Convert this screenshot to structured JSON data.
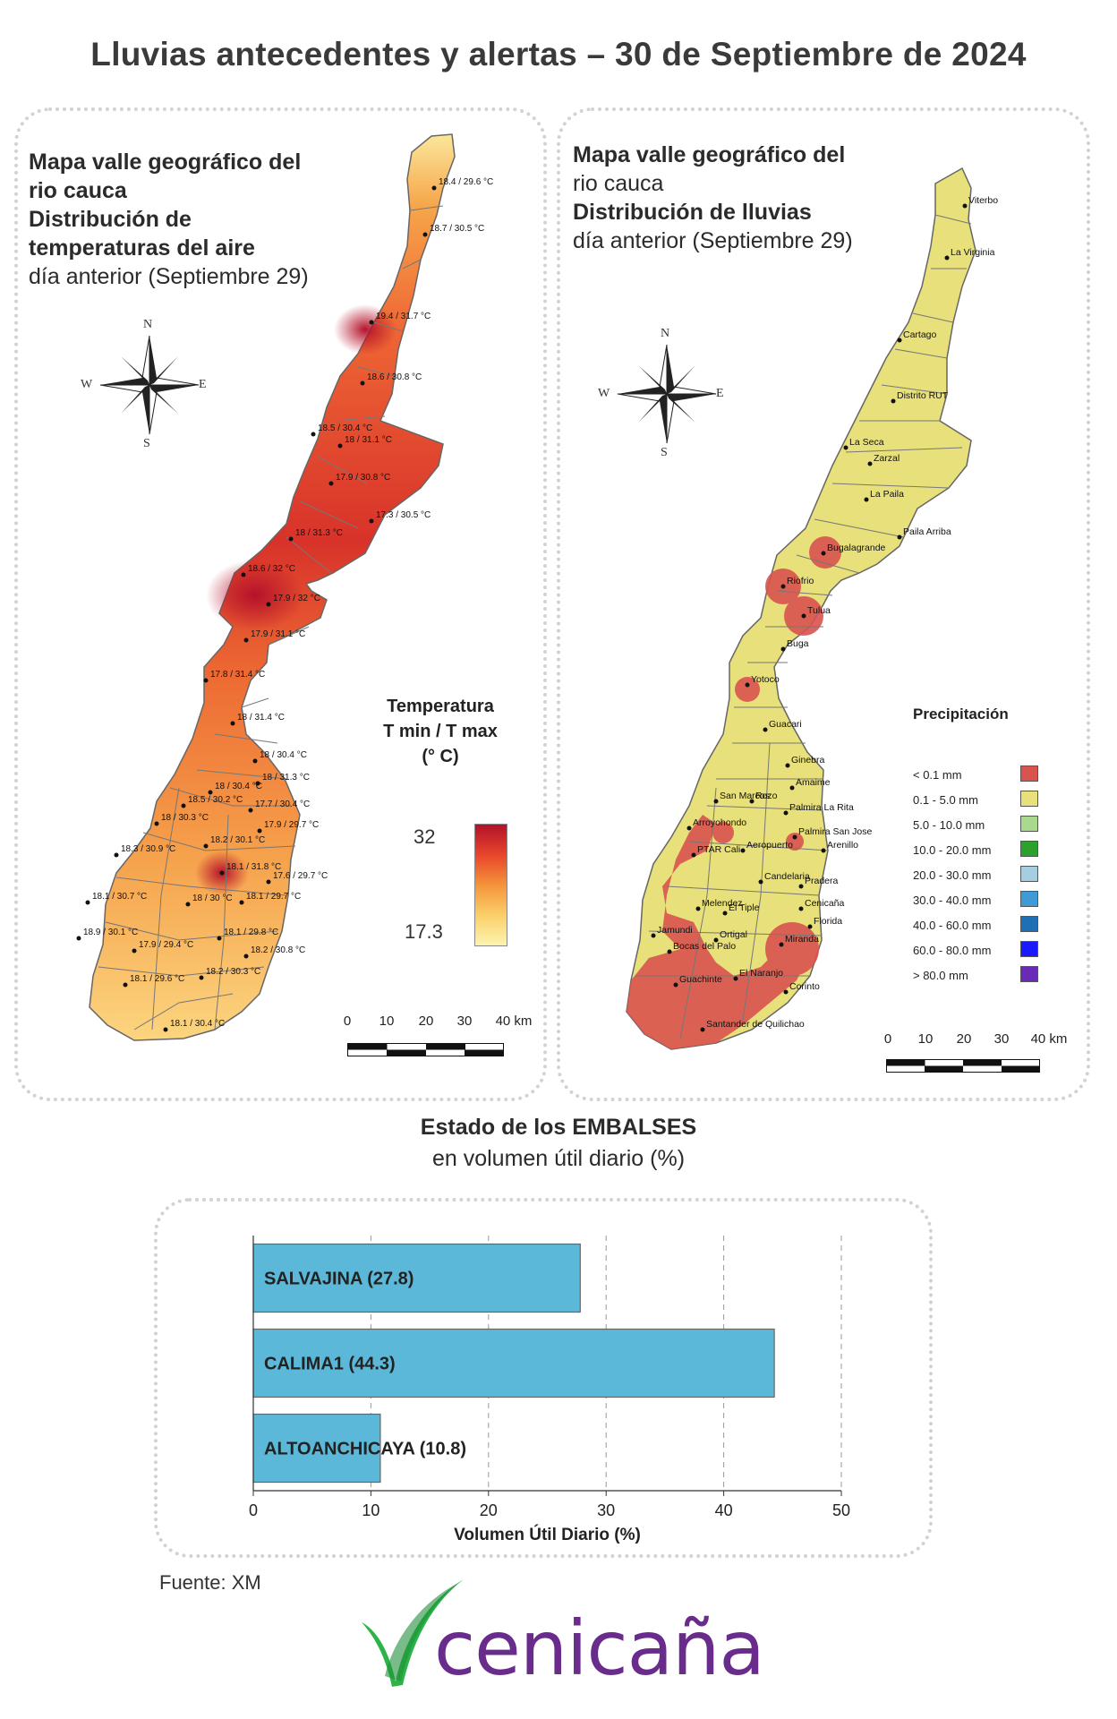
{
  "title": "Lluvias antecedentes y alertas – 30 de Septiembre de 2024",
  "temp_map": {
    "heading_bold": [
      "Mapa valle geográfico del",
      "rio cauca",
      "Distribución de",
      "temperaturas del aire"
    ],
    "heading_normal": "día anterior (Septiembre 29)",
    "compass": {
      "n": "N",
      "s": "S",
      "e": "E",
      "w": "W"
    },
    "legend_title": [
      "Temperatura",
      "T min / T max",
      "(° C)"
    ],
    "legend_max": "32",
    "legend_min": "17.3",
    "gradient_colors": [
      "#b1122a",
      "#e8452b",
      "#f4943a",
      "#fbcf6a",
      "#fdf4b0"
    ],
    "scale_labels": [
      "0",
      "10",
      "20",
      "30",
      "40 km"
    ],
    "stations": [
      "18.4 / 29.6 °C",
      "18.7 / 30.5 °C",
      "19.4 / 31.7 °C",
      "18.6 / 30.8 °C",
      "18.5 / 30.4 °C",
      "18 / 31.1 °C",
      "17.9 / 30.8 °C",
      "17.3 / 30.5 °C",
      "18 / 31.3 °C",
      "18.6 / 32 °C",
      "17.9 / 32 °C",
      "17.9 / 31.1 °C",
      "17.8 / 31.4 °C",
      "18 / 31.4 °C",
      "18 / 30.4 °C",
      "18 / 30.4 °C",
      "18 / 31.3 °C",
      "18.5 / 30.2 °C",
      "17.7 / 30.4 °C",
      "18 / 30.3 °C",
      "17.9 / 29.7 °C",
      "18.2 / 30.1 °C",
      "18.3 / 30.9 °C",
      "18.1 / 31.8 °C",
      "17.6 / 29.7 °C",
      "18.1 / 30.7 °C",
      "18 / 30 °C",
      "18.1 / 29.7 °C",
      "18.9 / 30.1 °C",
      "18.1 / 29.8 °C",
      "17.9 / 29.4 °C",
      "18.2 / 30.8 °C",
      "18.1 / 29.6 °C",
      "18.2 / 30.3 °C",
      "18.1 / 30.4 °C"
    ]
  },
  "rain_map": {
    "heading_bold": [
      "Mapa valle geográfico del",
      "rio cauca",
      "Distribución de lluvias"
    ],
    "heading_normal": "día anterior (Septiembre 29)",
    "compass": {
      "n": "N",
      "s": "S",
      "e": "E",
      "w": "W"
    },
    "legend_title": "Precipitación",
    "legend": [
      {
        "label": "< 0.1 mm",
        "color": "#d9534f"
      },
      {
        "label": "0.1 - 5.0 mm",
        "color": "#e8e07a"
      },
      {
        "label": "5.0 - 10.0 mm",
        "color": "#a9d98f"
      },
      {
        "label": "10.0 - 20.0 mm",
        "color": "#2ea02e"
      },
      {
        "label": "20.0 - 30.0 mm",
        "color": "#a6cee3"
      },
      {
        "label": "30.0 - 40.0 mm",
        "color": "#3f9ad6"
      },
      {
        "label": "40.0 - 60.0 mm",
        "color": "#1f6fb4"
      },
      {
        "label": "60.0 - 80.0 mm",
        "color": "#1a1aff"
      },
      {
        "label": "> 80.0 mm",
        "color": "#6a2ab8"
      }
    ],
    "scale_labels": [
      "0",
      "10",
      "20",
      "30",
      "40 km"
    ],
    "places": [
      "Viterbo",
      "La Virginia",
      "Cartago",
      "Distrito RUT",
      "La Seca",
      "Zarzal",
      "La Paila",
      "Paila Arriba",
      "Bugalagrande",
      "Riofrio",
      "Tulua",
      "Buga",
      "Yotoco",
      "Guacari",
      "Ginebra",
      "Amaime",
      "San Marcos",
      "Rozo",
      "Palmira La Rita",
      "Arroyohondo",
      "Palmira San Jose",
      "PTAR Cali",
      "Aeropuerto",
      "Arenillo",
      "Candelaria",
      "Pradera",
      "Melendez",
      "El Tiple",
      "Cenicaña",
      "Florida",
      "Jamundi",
      "Bocas del Palo",
      "Ortigal",
      "Miranda",
      "Guachinte",
      "El Naranjo",
      "Corinto",
      "Santander de Quilichao"
    ]
  },
  "reservoirs": {
    "heading_bold": "Estado de los EMBALSES",
    "heading_normal": "en volumen útil diario (%)",
    "chart_data": {
      "type": "bar",
      "orientation": "horizontal",
      "categories": [
        "SALVAJINA (27.8)",
        "CALIMA1 (44.3)",
        "ALTOANCHICAYA (10.8)"
      ],
      "values": [
        27.8,
        44.3,
        10.8
      ],
      "xlabel": "Volumen Útil Diario (%)",
      "xlim": [
        0,
        50
      ],
      "xticks": [
        0,
        10,
        20,
        30,
        40,
        50
      ],
      "grid": true,
      "bar_color": "#5bb8d8"
    }
  },
  "source": "Fuente: XM",
  "logo": {
    "text": "cenicaña",
    "text_color": "#6a2c8c",
    "mark_color": "#2db34a"
  }
}
